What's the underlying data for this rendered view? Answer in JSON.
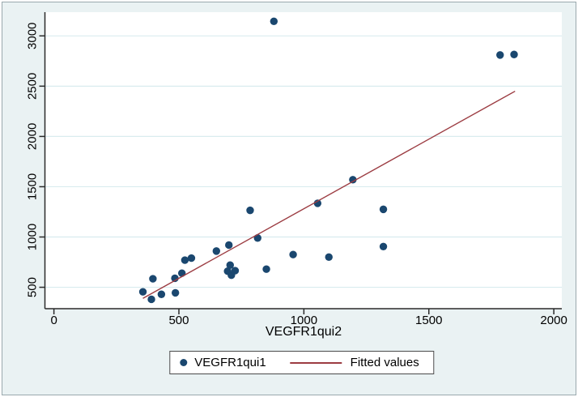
{
  "colors": {
    "figure_bg": "#eaf2f3",
    "plot_bg": "#ffffff",
    "grid": "#d9ecef",
    "axis": "#2a2a2a",
    "scatter": "#1a476f",
    "fit_line": "#9c3c42",
    "legend_border": "#4a4a4a"
  },
  "chart_data": {
    "type": "scatter",
    "title": "",
    "xlabel": "VEGFR1qui2",
    "ylabel": "",
    "xlim": [
      -36,
      2032
    ],
    "ylim": [
      287,
      3236
    ],
    "x_ticks": [
      0,
      500,
      1000,
      1500,
      2000
    ],
    "y_ticks": [
      500,
      1000,
      1500,
      2000,
      2500,
      3000
    ],
    "grid": "horizontal",
    "legend_position": "bottom-center",
    "series": [
      {
        "name": "VEGFR1qui1",
        "type": "scatter",
        "color": "#1a476f",
        "marker": "filled-circle",
        "points": [
          [
            356,
            455
          ],
          [
            390,
            380
          ],
          [
            396,
            585
          ],
          [
            430,
            430
          ],
          [
            484,
            590
          ],
          [
            486,
            445
          ],
          [
            512,
            640
          ],
          [
            524,
            770
          ],
          [
            550,
            790
          ],
          [
            650,
            860
          ],
          [
            700,
            920
          ],
          [
            705,
            720
          ],
          [
            695,
            660
          ],
          [
            725,
            665
          ],
          [
            710,
            620
          ],
          [
            785,
            1265
          ],
          [
            815,
            990
          ],
          [
            850,
            680
          ],
          [
            880,
            3145
          ],
          [
            957,
            825
          ],
          [
            1055,
            1335
          ],
          [
            1100,
            800
          ],
          [
            1196,
            1570
          ],
          [
            1318,
            1275
          ],
          [
            1318,
            905
          ],
          [
            1785,
            2810
          ],
          [
            1841,
            2815
          ]
        ]
      },
      {
        "name": "Fitted values",
        "type": "line",
        "color": "#9c3c42",
        "points": [
          [
            356,
            390
          ],
          [
            1845,
            2450
          ]
        ]
      }
    ]
  }
}
